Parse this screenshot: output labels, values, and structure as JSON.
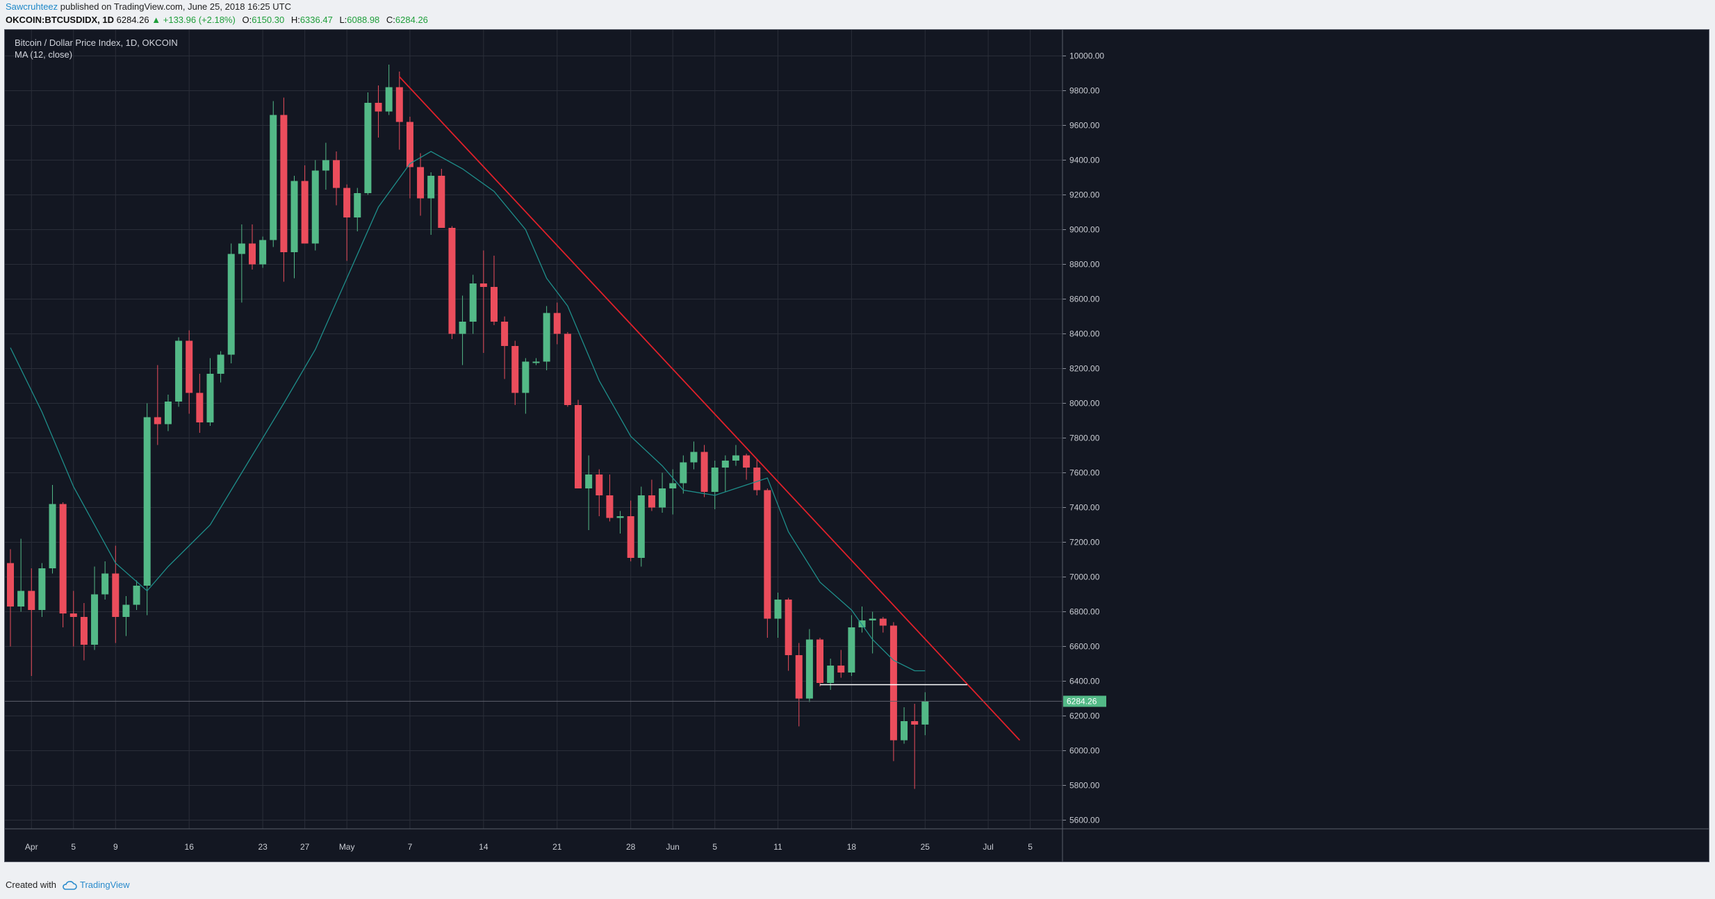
{
  "header": {
    "author": "Sawcruhteez",
    "published_text": "published on TradingView.com, June 25, 2018 16:25 UTC",
    "symbol": "OKCOIN:BTCUSDIDX, 1D",
    "last": "6284.26",
    "change": "▲ +133.96 (+2.18%)",
    "open_label": "O:",
    "open": "6150.30",
    "high_label": "H:",
    "high": "6336.47",
    "low_label": "L:",
    "low": "6088.98",
    "close_label": "C:",
    "close": "6284.26"
  },
  "legend": {
    "title": "Bitcoin / Dollar Price Index, 1D, OKCOIN",
    "indicator": "MA (12, close)"
  },
  "footer": {
    "created_with": "Created with",
    "brand": "TradingView"
  },
  "colors": {
    "background": "#131722",
    "grid": "#2a2e39",
    "up": "#53b987",
    "down": "#eb4d5c",
    "ma": "#1e8e8a",
    "trendline": "#e0202a",
    "support": "#ffffff",
    "price_tag": "#53b987"
  },
  "chart_data": {
    "type": "candlestick",
    "symbol": "BTCUSD",
    "interval": "1D",
    "ylim": [
      5550,
      10150
    ],
    "y_ticks": [
      "5600.00",
      "5800.00",
      "6000.00",
      "6200.00",
      "6400.00",
      "6600.00",
      "6800.00",
      "7000.00",
      "7200.00",
      "7400.00",
      "7600.00",
      "7800.00",
      "8000.00",
      "8200.00",
      "8400.00",
      "8600.00",
      "8800.00",
      "9000.00",
      "9200.00",
      "9400.00",
      "9600.00",
      "9800.00",
      "10000.00"
    ],
    "x_ticks": [
      {
        "date": "2018-04-01",
        "label": "Apr"
      },
      {
        "date": "2018-04-05",
        "label": "5"
      },
      {
        "date": "2018-04-09",
        "label": "9"
      },
      {
        "date": "2018-04-16",
        "label": "16"
      },
      {
        "date": "2018-04-23",
        "label": "23"
      },
      {
        "date": "2018-04-27",
        "label": "27"
      },
      {
        "date": "2018-05-01",
        "label": "May"
      },
      {
        "date": "2018-05-07",
        "label": "7"
      },
      {
        "date": "2018-05-14",
        "label": "14"
      },
      {
        "date": "2018-05-21",
        "label": "21"
      },
      {
        "date": "2018-05-28",
        "label": "28"
      },
      {
        "date": "2018-06-01",
        "label": "Jun"
      },
      {
        "date": "2018-06-05",
        "label": "5"
      },
      {
        "date": "2018-06-11",
        "label": "11"
      },
      {
        "date": "2018-06-18",
        "label": "18"
      },
      {
        "date": "2018-06-25",
        "label": "25"
      },
      {
        "date": "2018-07-01",
        "label": "Jul"
      },
      {
        "date": "2018-07-05",
        "label": "5"
      }
    ],
    "candles": [
      {
        "date": "2018-03-30",
        "o": 7080,
        "h": 7160,
        "l": 6600,
        "c": 6830
      },
      {
        "date": "2018-03-31",
        "o": 6830,
        "h": 7220,
        "l": 6800,
        "c": 6920
      },
      {
        "date": "2018-04-01",
        "o": 6920,
        "h": 7050,
        "l": 6430,
        "c": 6810
      },
      {
        "date": "2018-04-02",
        "o": 6810,
        "h": 7080,
        "l": 6770,
        "c": 7050
      },
      {
        "date": "2018-04-03",
        "o": 7050,
        "h": 7530,
        "l": 7020,
        "c": 7420
      },
      {
        "date": "2018-04-04",
        "o": 7420,
        "h": 7430,
        "l": 6710,
        "c": 6790
      },
      {
        "date": "2018-04-05",
        "o": 6790,
        "h": 6920,
        "l": 6600,
        "c": 6770
      },
      {
        "date": "2018-04-06",
        "o": 6770,
        "h": 6850,
        "l": 6520,
        "c": 6610
      },
      {
        "date": "2018-04-07",
        "o": 6610,
        "h": 7060,
        "l": 6580,
        "c": 6900
      },
      {
        "date": "2018-04-08",
        "o": 6900,
        "h": 7090,
        "l": 6870,
        "c": 7020
      },
      {
        "date": "2018-04-09",
        "o": 7020,
        "h": 7180,
        "l": 6620,
        "c": 6770
      },
      {
        "date": "2018-04-10",
        "o": 6770,
        "h": 6890,
        "l": 6660,
        "c": 6840
      },
      {
        "date": "2018-04-11",
        "o": 6840,
        "h": 6980,
        "l": 6810,
        "c": 6950
      },
      {
        "date": "2018-04-12",
        "o": 6950,
        "h": 8000,
        "l": 6780,
        "c": 7920
      },
      {
        "date": "2018-04-13",
        "o": 7920,
        "h": 8220,
        "l": 7760,
        "c": 7880
      },
      {
        "date": "2018-04-14",
        "o": 7880,
        "h": 8050,
        "l": 7840,
        "c": 8010
      },
      {
        "date": "2018-04-15",
        "o": 8010,
        "h": 8380,
        "l": 7980,
        "c": 8360
      },
      {
        "date": "2018-04-16",
        "o": 8360,
        "h": 8420,
        "l": 7940,
        "c": 8060
      },
      {
        "date": "2018-04-17",
        "o": 8060,
        "h": 8170,
        "l": 7830,
        "c": 7890
      },
      {
        "date": "2018-04-18",
        "o": 7890,
        "h": 8260,
        "l": 7870,
        "c": 8170
      },
      {
        "date": "2018-04-19",
        "o": 8170,
        "h": 8300,
        "l": 8120,
        "c": 8280
      },
      {
        "date": "2018-04-20",
        "o": 8280,
        "h": 8920,
        "l": 8230,
        "c": 8860
      },
      {
        "date": "2018-04-21",
        "o": 8860,
        "h": 9030,
        "l": 8580,
        "c": 8920
      },
      {
        "date": "2018-04-22",
        "o": 8920,
        "h": 9030,
        "l": 8770,
        "c": 8800
      },
      {
        "date": "2018-04-23",
        "o": 8800,
        "h": 8960,
        "l": 8780,
        "c": 8940
      },
      {
        "date": "2018-04-24",
        "o": 8940,
        "h": 9740,
        "l": 8900,
        "c": 9660
      },
      {
        "date": "2018-04-25",
        "o": 9660,
        "h": 9760,
        "l": 8700,
        "c": 8870
      },
      {
        "date": "2018-04-26",
        "o": 8870,
        "h": 9310,
        "l": 8720,
        "c": 9280
      },
      {
        "date": "2018-04-27",
        "o": 9280,
        "h": 9370,
        "l": 8920,
        "c": 8920
      },
      {
        "date": "2018-04-28",
        "o": 8920,
        "h": 9400,
        "l": 8880,
        "c": 9340
      },
      {
        "date": "2018-04-29",
        "o": 9340,
        "h": 9500,
        "l": 9230,
        "c": 9400
      },
      {
        "date": "2018-04-30",
        "o": 9400,
        "h": 9450,
        "l": 9140,
        "c": 9240
      },
      {
        "date": "2018-05-01",
        "o": 9240,
        "h": 9260,
        "l": 8820,
        "c": 9070
      },
      {
        "date": "2018-05-02",
        "o": 9070,
        "h": 9240,
        "l": 8990,
        "c": 9210
      },
      {
        "date": "2018-05-03",
        "o": 9210,
        "h": 9790,
        "l": 9200,
        "c": 9730
      },
      {
        "date": "2018-05-04",
        "o": 9730,
        "h": 9830,
        "l": 9530,
        "c": 9680
      },
      {
        "date": "2018-05-05",
        "o": 9680,
        "h": 9950,
        "l": 9660,
        "c": 9820
      },
      {
        "date": "2018-05-06",
        "o": 9820,
        "h": 9910,
        "l": 9460,
        "c": 9620
      },
      {
        "date": "2018-05-07",
        "o": 9620,
        "h": 9650,
        "l": 9180,
        "c": 9360
      },
      {
        "date": "2018-05-08",
        "o": 9360,
        "h": 9440,
        "l": 9080,
        "c": 9180
      },
      {
        "date": "2018-05-09",
        "o": 9180,
        "h": 9330,
        "l": 8970,
        "c": 9310
      },
      {
        "date": "2018-05-10",
        "o": 9310,
        "h": 9350,
        "l": 9010,
        "c": 9010
      },
      {
        "date": "2018-05-11",
        "o": 9010,
        "h": 9020,
        "l": 8370,
        "c": 8400
      },
      {
        "date": "2018-05-12",
        "o": 8400,
        "h": 8620,
        "l": 8220,
        "c": 8470
      },
      {
        "date": "2018-05-13",
        "o": 8470,
        "h": 8740,
        "l": 8400,
        "c": 8690
      },
      {
        "date": "2018-05-14",
        "o": 8690,
        "h": 8880,
        "l": 8290,
        "c": 8670
      },
      {
        "date": "2018-05-15",
        "o": 8670,
        "h": 8850,
        "l": 8450,
        "c": 8470
      },
      {
        "date": "2018-05-16",
        "o": 8470,
        "h": 8500,
        "l": 8140,
        "c": 8330
      },
      {
        "date": "2018-05-17",
        "o": 8330,
        "h": 8360,
        "l": 7990,
        "c": 8060
      },
      {
        "date": "2018-05-18",
        "o": 8060,
        "h": 8260,
        "l": 7940,
        "c": 8240
      },
      {
        "date": "2018-05-19",
        "o": 8240,
        "h": 8260,
        "l": 8220,
        "c": 8240
      },
      {
        "date": "2018-05-20",
        "o": 8240,
        "h": 8560,
        "l": 8190,
        "c": 8520
      },
      {
        "date": "2018-05-21",
        "o": 8520,
        "h": 8580,
        "l": 8340,
        "c": 8400
      },
      {
        "date": "2018-05-22",
        "o": 8400,
        "h": 8410,
        "l": 7980,
        "c": 7990
      },
      {
        "date": "2018-05-23",
        "o": 7990,
        "h": 8020,
        "l": 7510,
        "c": 7510
      },
      {
        "date": "2018-05-24",
        "o": 7510,
        "h": 7700,
        "l": 7270,
        "c": 7590
      },
      {
        "date": "2018-05-25",
        "o": 7590,
        "h": 7620,
        "l": 7350,
        "c": 7470
      },
      {
        "date": "2018-05-26",
        "o": 7470,
        "h": 7590,
        "l": 7320,
        "c": 7340
      },
      {
        "date": "2018-05-27",
        "o": 7340,
        "h": 7380,
        "l": 7250,
        "c": 7350
      },
      {
        "date": "2018-05-28",
        "o": 7350,
        "h": 7440,
        "l": 7090,
        "c": 7110
      },
      {
        "date": "2018-05-29",
        "o": 7110,
        "h": 7520,
        "l": 7060,
        "c": 7470
      },
      {
        "date": "2018-05-30",
        "o": 7470,
        "h": 7560,
        "l": 7380,
        "c": 7400
      },
      {
        "date": "2018-05-31",
        "o": 7400,
        "h": 7600,
        "l": 7370,
        "c": 7510
      },
      {
        "date": "2018-06-01",
        "o": 7510,
        "h": 7620,
        "l": 7360,
        "c": 7540
      },
      {
        "date": "2018-06-02",
        "o": 7540,
        "h": 7700,
        "l": 7480,
        "c": 7660
      },
      {
        "date": "2018-06-03",
        "o": 7660,
        "h": 7780,
        "l": 7620,
        "c": 7720
      },
      {
        "date": "2018-06-04",
        "o": 7720,
        "h": 7760,
        "l": 7460,
        "c": 7490
      },
      {
        "date": "2018-06-05",
        "o": 7490,
        "h": 7670,
        "l": 7390,
        "c": 7630
      },
      {
        "date": "2018-06-06",
        "o": 7630,
        "h": 7700,
        "l": 7490,
        "c": 7670
      },
      {
        "date": "2018-06-07",
        "o": 7670,
        "h": 7760,
        "l": 7640,
        "c": 7700
      },
      {
        "date": "2018-06-08",
        "o": 7700,
        "h": 7710,
        "l": 7560,
        "c": 7630
      },
      {
        "date": "2018-06-09",
        "o": 7630,
        "h": 7680,
        "l": 7470,
        "c": 7500
      },
      {
        "date": "2018-06-10",
        "o": 7500,
        "h": 7510,
        "l": 6650,
        "c": 6760
      },
      {
        "date": "2018-06-11",
        "o": 6760,
        "h": 6910,
        "l": 6650,
        "c": 6870
      },
      {
        "date": "2018-06-12",
        "o": 6870,
        "h": 6880,
        "l": 6460,
        "c": 6550
      },
      {
        "date": "2018-06-13",
        "o": 6550,
        "h": 6620,
        "l": 6140,
        "c": 6300
      },
      {
        "date": "2018-06-14",
        "o": 6300,
        "h": 6700,
        "l": 6280,
        "c": 6640
      },
      {
        "date": "2018-06-15",
        "o": 6640,
        "h": 6650,
        "l": 6370,
        "c": 6390
      },
      {
        "date": "2018-06-16",
        "o": 6390,
        "h": 6530,
        "l": 6350,
        "c": 6490
      },
      {
        "date": "2018-06-17",
        "o": 6490,
        "h": 6580,
        "l": 6420,
        "c": 6450
      },
      {
        "date": "2018-06-18",
        "o": 6450,
        "h": 6780,
        "l": 6430,
        "c": 6710
      },
      {
        "date": "2018-06-19",
        "o": 6710,
        "h": 6830,
        "l": 6680,
        "c": 6750
      },
      {
        "date": "2018-06-20",
        "o": 6750,
        "h": 6800,
        "l": 6560,
        "c": 6760
      },
      {
        "date": "2018-06-21",
        "o": 6760,
        "h": 6770,
        "l": 6680,
        "c": 6720
      },
      {
        "date": "2018-06-22",
        "o": 6720,
        "h": 6740,
        "l": 5940,
        "c": 6060
      },
      {
        "date": "2018-06-23",
        "o": 6060,
        "h": 6250,
        "l": 6040,
        "c": 6170
      },
      {
        "date": "2018-06-24",
        "o": 6170,
        "h": 6270,
        "l": 5780,
        "c": 6150
      },
      {
        "date": "2018-06-25",
        "o": 6150.3,
        "h": 6336.47,
        "l": 6088.98,
        "c": 6284.26
      }
    ],
    "ma": {
      "name": "MA (12, close)",
      "points": [
        [
          "2018-03-30",
          8320
        ],
        [
          "2018-04-02",
          7950
        ],
        [
          "2018-04-05",
          7520
        ],
        [
          "2018-04-09",
          7080
        ],
        [
          "2018-04-12",
          6920
        ],
        [
          "2018-04-14",
          7060
        ],
        [
          "2018-04-18",
          7300
        ],
        [
          "2018-04-22",
          7700
        ],
        [
          "2018-04-25",
          8000
        ],
        [
          "2018-04-28",
          8310
        ],
        [
          "2018-05-01",
          8720
        ],
        [
          "2018-05-04",
          9130
        ],
        [
          "2018-05-07",
          9380
        ],
        [
          "2018-05-09",
          9450
        ],
        [
          "2018-05-12",
          9350
        ],
        [
          "2018-05-15",
          9220
        ],
        [
          "2018-05-18",
          9000
        ],
        [
          "2018-05-20",
          8720
        ],
        [
          "2018-05-22",
          8560
        ],
        [
          "2018-05-25",
          8130
        ],
        [
          "2018-05-28",
          7810
        ],
        [
          "2018-05-31",
          7640
        ],
        [
          "2018-06-02",
          7500
        ],
        [
          "2018-06-05",
          7470
        ],
        [
          "2018-06-08",
          7530
        ],
        [
          "2018-06-10",
          7570
        ],
        [
          "2018-06-12",
          7260
        ],
        [
          "2018-06-15",
          6970
        ],
        [
          "2018-06-18",
          6810
        ],
        [
          "2018-06-20",
          6640
        ],
        [
          "2018-06-22",
          6520
        ],
        [
          "2018-06-24",
          6460
        ],
        [
          "2018-06-25",
          6460
        ]
      ]
    },
    "trendline": {
      "start": [
        "2018-05-06",
        9880
      ],
      "end": [
        "2018-07-04",
        6060
      ]
    },
    "support_line": {
      "start": [
        "2018-06-15",
        6380
      ],
      "end": [
        "2018-06-29",
        6380
      ]
    },
    "last_price": {
      "value": 6284.26,
      "label": "6284.26"
    }
  }
}
